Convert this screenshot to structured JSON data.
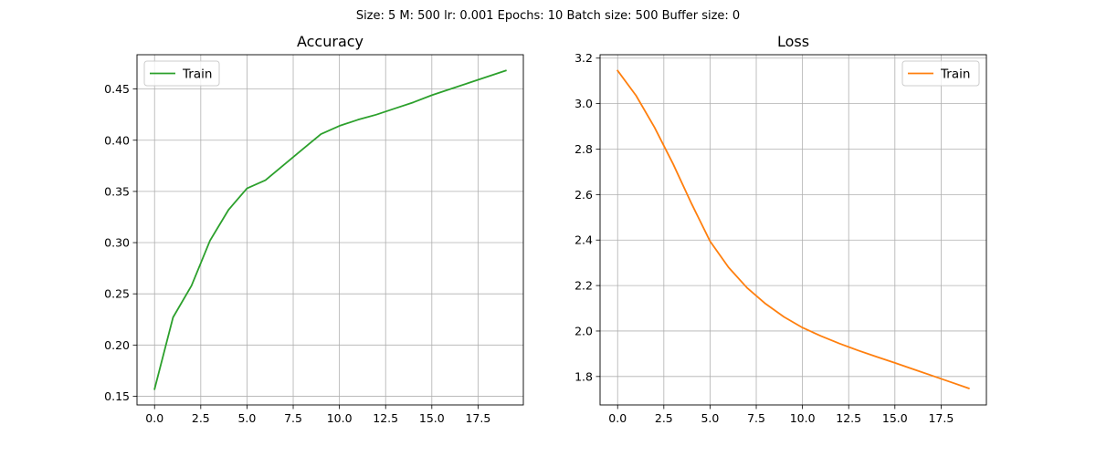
{
  "figure": {
    "suptitle": "Size: 5   M: 500   lr: 0.001   Epochs: 10   Batch size: 500   Buffer size: 0"
  },
  "chart_data": [
    {
      "id": "accuracy",
      "type": "line",
      "title": "Accuracy",
      "xlabel": "",
      "ylabel": "",
      "xlim": [
        -0.95,
        19.95
      ],
      "ylim": [
        0.1415,
        0.4835
      ],
      "xticks": [
        0.0,
        2.5,
        5.0,
        7.5,
        10.0,
        12.5,
        15.0,
        17.5
      ],
      "xtick_labels": [
        "0.0",
        "2.5",
        "5.0",
        "7.5",
        "10.0",
        "12.5",
        "15.0",
        "17.5"
      ],
      "yticks": [
        0.15,
        0.2,
        0.25,
        0.3,
        0.35,
        0.4,
        0.45
      ],
      "ytick_labels": [
        "0.15",
        "0.20",
        "0.25",
        "0.30",
        "0.35",
        "0.40",
        "0.45"
      ],
      "grid": true,
      "legend_position": "top-left",
      "series": [
        {
          "name": "Train",
          "color": "#2ca02c",
          "x": [
            0,
            1,
            2,
            3,
            4,
            5,
            6,
            7,
            8,
            9,
            10,
            11,
            12,
            13,
            14,
            15,
            16,
            17,
            18,
            19
          ],
          "values": [
            0.157,
            0.227,
            0.258,
            0.302,
            0.332,
            0.353,
            0.361,
            0.376,
            0.391,
            0.406,
            0.414,
            0.42,
            0.425,
            0.431,
            0.437,
            0.444,
            0.45,
            0.456,
            0.462,
            0.468
          ]
        }
      ]
    },
    {
      "id": "loss",
      "type": "line",
      "title": "Loss",
      "xlabel": "",
      "ylabel": "",
      "xlim": [
        -0.95,
        19.95
      ],
      "ylim": [
        1.675,
        3.215
      ],
      "xticks": [
        0.0,
        2.5,
        5.0,
        7.5,
        10.0,
        12.5,
        15.0,
        17.5
      ],
      "xtick_labels": [
        "0.0",
        "2.5",
        "5.0",
        "7.5",
        "10.0",
        "12.5",
        "15.0",
        "17.5"
      ],
      "yticks": [
        1.8,
        2.0,
        2.2,
        2.4,
        2.6,
        2.8,
        3.0,
        3.2
      ],
      "ytick_labels": [
        "1.8",
        "2.0",
        "2.2",
        "2.4",
        "2.6",
        "2.8",
        "3.0",
        "3.2"
      ],
      "grid": true,
      "legend_position": "top-right",
      "series": [
        {
          "name": "Train",
          "color": "#ff7f0e",
          "x": [
            0,
            1,
            2,
            3,
            4,
            5,
            6,
            7,
            8,
            9,
            10,
            11,
            12,
            13,
            14,
            15,
            16,
            17,
            18,
            19
          ],
          "values": [
            3.145,
            3.035,
            2.895,
            2.735,
            2.56,
            2.395,
            2.28,
            2.19,
            2.12,
            2.062,
            2.015,
            1.978,
            1.945,
            1.915,
            1.887,
            1.86,
            1.832,
            1.804,
            1.776,
            1.748
          ]
        }
      ]
    }
  ]
}
